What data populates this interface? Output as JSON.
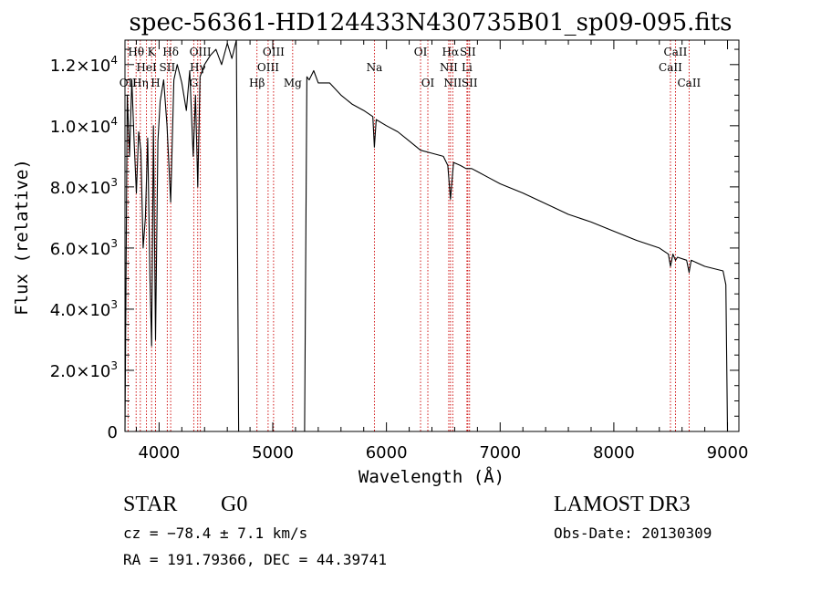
{
  "chart_data": {
    "type": "line",
    "title": "spec-56361-HD124433N430735B01_sp09-095.fits",
    "xlabel": "Wavelength (Å)",
    "ylabel": "Flux (relative)",
    "xlim": [
      3700,
      9100
    ],
    "ylim": [
      0,
      12800
    ],
    "xticks": [
      {
        "value": 4000,
        "label": "4000"
      },
      {
        "value": 5000,
        "label": "5000"
      },
      {
        "value": 6000,
        "label": "6000"
      },
      {
        "value": 7000,
        "label": "7000"
      },
      {
        "value": 8000,
        "label": "8000"
      },
      {
        "value": 9000,
        "label": "9000"
      }
    ],
    "yticks": [
      {
        "value": 0,
        "mant": "0",
        "exp": ""
      },
      {
        "value": 2000,
        "mant": "2.0×10",
        "exp": "3"
      },
      {
        "value": 4000,
        "mant": "4.0×10",
        "exp": "3"
      },
      {
        "value": 6000,
        "mant": "6.0×10",
        "exp": "3"
      },
      {
        "value": 8000,
        "mant": "8.0×10",
        "exp": "3"
      },
      {
        "value": 10000,
        "mant": "1.0×10",
        "exp": "4"
      },
      {
        "value": 12000,
        "mant": "1.2×10",
        "exp": "4"
      }
    ],
    "line_markers": [
      {
        "name": "OII",
        "wavelength": 3727,
        "row": 3
      },
      {
        "name": "Hθ",
        "wavelength": 3798,
        "row": 1
      },
      {
        "name": "HeI",
        "wavelength": 3889,
        "row": 2
      },
      {
        "name": "Hη",
        "wavelength": 3835,
        "row": 3
      },
      {
        "name": "K",
        "wavelength": 3934,
        "row": 1
      },
      {
        "name": "H",
        "wavelength": 3969,
        "row": 3
      },
      {
        "name": "SII",
        "wavelength": 4072,
        "row": 2
      },
      {
        "name": "Hδ",
        "wavelength": 4102,
        "row": 1
      },
      {
        "name": "Hγ",
        "wavelength": 4340,
        "row": 2
      },
      {
        "name": "OIII",
        "wavelength": 4363,
        "row": 1
      },
      {
        "name": "G",
        "wavelength": 4305,
        "row": 3
      },
      {
        "name": "Hβ",
        "wavelength": 4861,
        "row": 3
      },
      {
        "name": "OIII",
        "wavelength": 4959,
        "row": 2
      },
      {
        "name": "OIII",
        "wavelength": 5007,
        "row": 1
      },
      {
        "name": "Mg",
        "wavelength": 5175,
        "row": 3
      },
      {
        "name": "Na",
        "wavelength": 5894,
        "row": 2
      },
      {
        "name": "OI",
        "wavelength": 6300,
        "row": 1
      },
      {
        "name": "OI",
        "wavelength": 6364,
        "row": 3
      },
      {
        "name": "NII",
        "wavelength": 6548,
        "row": 2
      },
      {
        "name": "Hα",
        "wavelength": 6563,
        "row": 1
      },
      {
        "name": "NII",
        "wavelength": 6583,
        "row": 3
      },
      {
        "name": "Li",
        "wavelength": 6708,
        "row": 2
      },
      {
        "name": "SII",
        "wavelength": 6716,
        "row": 1
      },
      {
        "name": "SII",
        "wavelength": 6731,
        "row": 3
      },
      {
        "name": "CaII",
        "wavelength": 8498,
        "row": 2
      },
      {
        "name": "CaII",
        "wavelength": 8542,
        "row": 1
      },
      {
        "name": "CaII",
        "wavelength": 8662,
        "row": 3
      }
    ],
    "series": [
      {
        "name": "spectrum",
        "x": [
          3700,
          3720,
          3740,
          3760,
          3780,
          3800,
          3820,
          3840,
          3860,
          3880,
          3900,
          3920,
          3934,
          3950,
          3969,
          3990,
          4010,
          4040,
          4070,
          4102,
          4130,
          4160,
          4200,
          4240,
          4270,
          4300,
          4320,
          4340,
          4360,
          4400,
          4450,
          4500,
          4550,
          4600,
          4640,
          4680,
          4700,
          4720,
          4750,
          4800,
          4900,
          5000,
          5100,
          5200,
          5280,
          5300,
          5320,
          5360,
          5400,
          5500,
          5600,
          5700,
          5800,
          5880,
          5894,
          5910,
          6000,
          6100,
          6200,
          6300,
          6400,
          6500,
          6540,
          6563,
          6590,
          6650,
          6700,
          6750,
          6800,
          6900,
          7000,
          7200,
          7400,
          7600,
          7800,
          8000,
          8200,
          8400,
          8480,
          8498,
          8520,
          8542,
          8560,
          8640,
          8662,
          8680,
          8800,
          8960,
          8985,
          9000
        ],
        "y": [
          0,
          11000,
          9000,
          11500,
          9500,
          7800,
          9800,
          9200,
          6000,
          7000,
          9600,
          5000,
          2800,
          10000,
          3000,
          9500,
          10800,
          11500,
          10000,
          7500,
          11500,
          12000,
          11400,
          10500,
          11800,
          9000,
          11000,
          8000,
          11600,
          12000,
          12300,
          12500,
          12000,
          12700,
          12200,
          12800,
          0,
          0,
          0,
          0,
          0,
          0,
          0,
          0,
          0,
          11600,
          11500,
          11800,
          11400,
          11400,
          11000,
          10700,
          10500,
          10300,
          9300,
          10200,
          10000,
          9800,
          9500,
          9200,
          9100,
          9000,
          8700,
          7600,
          8800,
          8700,
          8600,
          8600,
          8500,
          8300,
          8100,
          7800,
          7450,
          7100,
          6850,
          6550,
          6250,
          6000,
          5800,
          5400,
          5800,
          5600,
          5700,
          5600,
          5200,
          5600,
          5400,
          5250,
          4800,
          0
        ]
      }
    ]
  },
  "info": {
    "class": "STAR",
    "subclass": "G0",
    "survey": "LAMOST DR3",
    "cz": "cz = −78.4 ± 7.1 km/s",
    "obs_date": "Obs-Date: 20130309",
    "coords": "RA = 191.79366, DEC =  44.39741"
  }
}
